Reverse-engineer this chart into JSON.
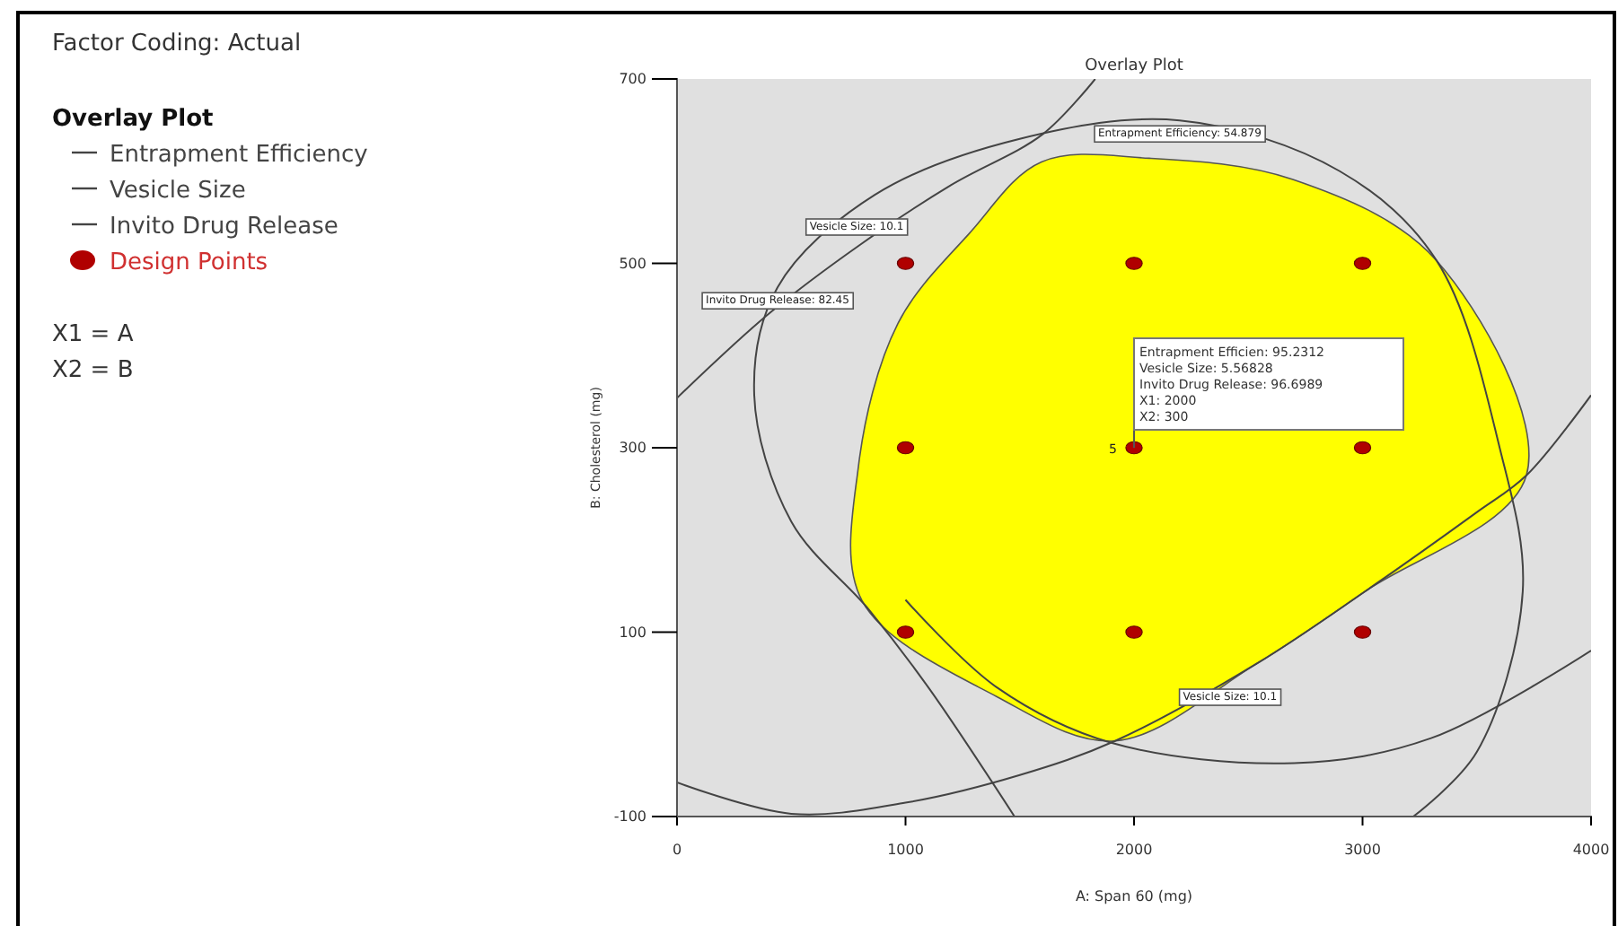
{
  "chart_data": {
    "type": "scatter",
    "title": "Overlay Plot",
    "legend_title": "Overlay Plot",
    "xlabel": "A: Span 60 (mg)",
    "ylabel": "B: Cholesterol (mg)",
    "xlim": [
      0,
      4000
    ],
    "ylim": [
      -100,
      700
    ],
    "xticks": [
      0,
      1000,
      2000,
      3000,
      4000
    ],
    "yticks": [
      -100,
      100,
      300,
      500,
      700
    ],
    "grid": false,
    "legend": "left",
    "marker": "circle",
    "series": [
      {
        "type": "area",
        "marker": "none",
        "color": "#ffff00",
        "x": [
          1595,
          2067,
          2695,
          3324,
          3717,
          3010,
          2538,
          1917,
          1400,
          810,
          794,
          967,
          1281
        ],
        "values": [
          610,
          614,
          591,
          503,
          270,
          144,
          66,
          -18,
          30,
          134,
          280,
          435,
          533
        ]
      },
      {
        "type": "line",
        "marker": "none",
        "name": "Entrapment Efficiency",
        "color": "#444444",
        "x": [
          1477,
          1100,
          841,
          500,
          338,
          440,
          864,
          1500,
          2200,
          2900,
          3324,
          3600,
          3701,
          3500,
          3222
        ],
        "values": [
          -100,
          40,
          124,
          220,
          357,
          474,
          574,
          635,
          655,
          600,
          503,
          300,
          144,
          -30,
          -100
        ]
      },
      {
        "type": "line",
        "marker": "none",
        "name": "Vesicle Size",
        "color": "#444444",
        "x": [
          0,
          400,
          800,
          1200,
          1600,
          1830,
          null,
          0,
          500,
          1000,
          1500,
          1917,
          2538,
          3010,
          3500,
          3717,
          4000
        ],
        "values": [
          354,
          445,
          520,
          585,
          640,
          700,
          null,
          -63,
          -97,
          -85,
          -55,
          -18,
          66,
          144,
          230,
          270,
          357
        ]
      },
      {
        "type": "line",
        "marker": "none",
        "name": "Invito Drug Release",
        "color": "#444444",
        "x": [
          1000,
          1400,
          1900,
          2700,
          3300,
          4000
        ],
        "values": [
          135,
          40,
          -20,
          -42,
          -15,
          80
        ]
      },
      {
        "type": "scatter",
        "name": "Design Points",
        "color": "#b00000",
        "x": [
          1000,
          2000,
          3000,
          1000,
          2000,
          3000,
          1000,
          2000,
          3000
        ],
        "values": [
          500,
          500,
          500,
          300,
          300,
          300,
          100,
          100,
          100
        ]
      }
    ],
    "annotations": [
      "Factor Coding: Actual",
      "X1 = A",
      "X2 = B",
      {
        "text": "Entrapment Efficiency: 54.879",
        "x": 2200,
        "y": 655
      },
      {
        "text": "Vesicle Size: 10.1",
        "x": 786,
        "y": 554
      },
      {
        "text": "Invito Drug Release: 82.45",
        "x": 440,
        "y": 474
      },
      {
        "text": "Vesicle Size: 10.1",
        "x": 2420,
        "y": 44
      },
      {
        "text": "5",
        "x": 2000,
        "y": 300
      },
      {
        "text": "Entrapment Efficien: 95.2312\nVesicle Size: 5.56828\nInvito Drug Release: 96.6989\nX1: 2000\nX2: 300",
        "x": 2000,
        "y": 300
      }
    ]
  }
}
